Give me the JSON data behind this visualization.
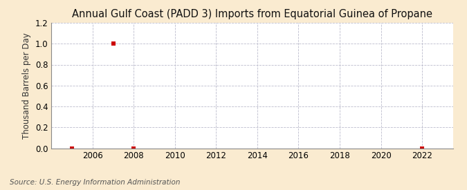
{
  "title": "Annual Gulf Coast (PADD 3) Imports from Equatorial Guinea of Propane",
  "ylabel": "Thousand Barrels per Day",
  "source": "Source: U.S. Energy Information Administration",
  "outer_bg_color": "#faebd0",
  "plot_bg_color": "#ffffff",
  "data_years": [
    2005,
    2007,
    2008,
    2022
  ],
  "data_values": [
    0.0,
    1.0,
    0.0,
    0.0
  ],
  "marker_color": "#cc0000",
  "marker_size": 4,
  "grid_color": "#bbbbcc",
  "xlim": [
    2004.0,
    2023.5
  ],
  "ylim": [
    0.0,
    1.2
  ],
  "xticks": [
    2006,
    2008,
    2010,
    2012,
    2014,
    2016,
    2018,
    2020,
    2022
  ],
  "yticks": [
    0.0,
    0.2,
    0.4,
    0.6,
    0.8,
    1.0,
    1.2
  ],
  "title_fontsize": 10.5,
  "label_fontsize": 8.5,
  "tick_fontsize": 8.5,
  "source_fontsize": 7.5
}
